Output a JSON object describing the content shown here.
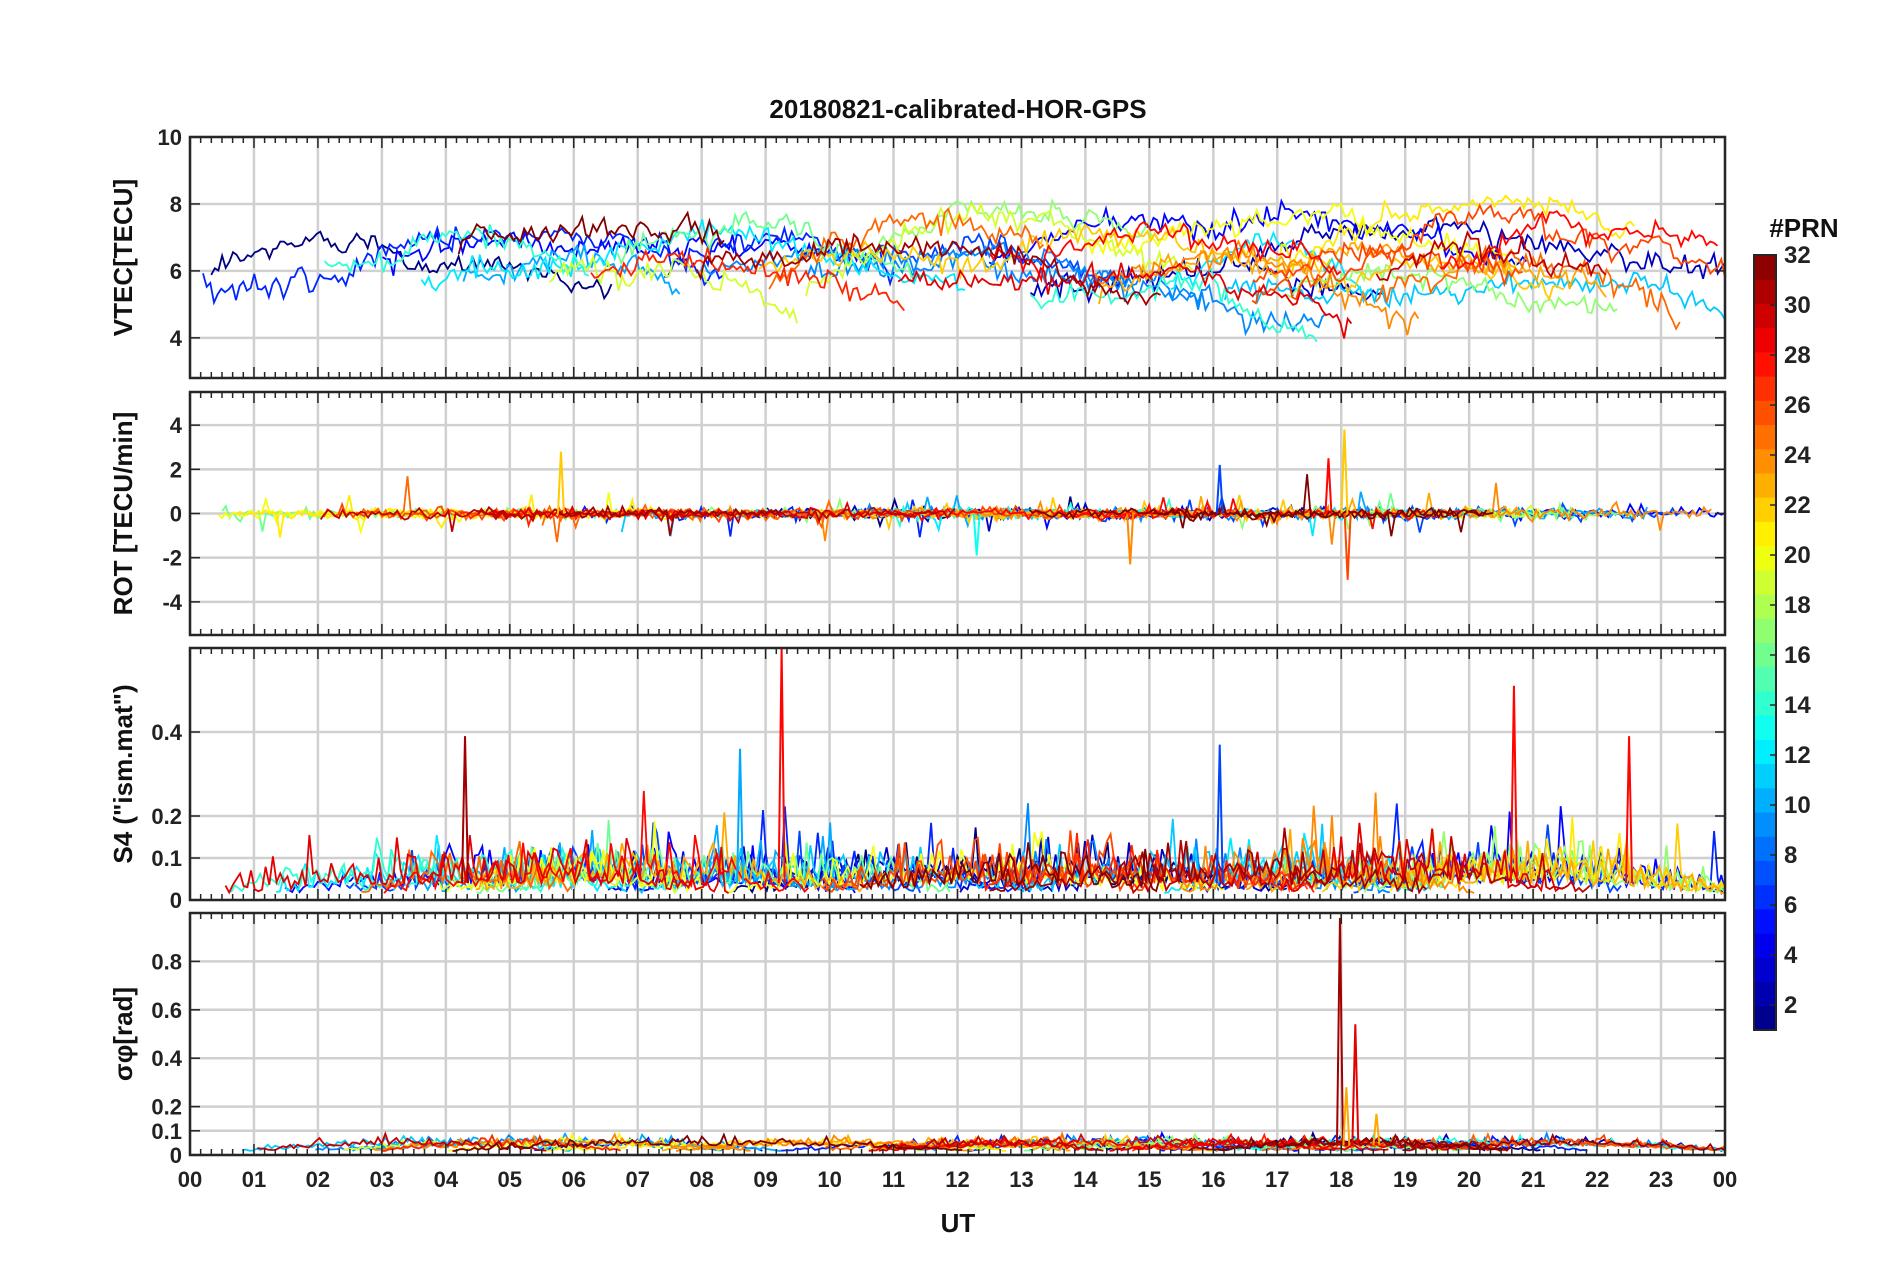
{
  "chart_data": {
    "type": "line",
    "title": "20180821-calibrated-HOR-GPS",
    "xlabel": "UT",
    "x_ticks": [
      "00",
      "01",
      "02",
      "03",
      "04",
      "05",
      "06",
      "07",
      "08",
      "09",
      "10",
      "11",
      "12",
      "13",
      "14",
      "15",
      "16",
      "17",
      "18",
      "19",
      "20",
      "21",
      "22",
      "23",
      "00"
    ],
    "x_range_hours": [
      0,
      24
    ],
    "grid": true,
    "colorbar": {
      "title": "#PRN",
      "range": [
        1,
        32
      ],
      "ticks": [
        "2",
        "4",
        "6",
        "8",
        "10",
        "12",
        "14",
        "16",
        "18",
        "20",
        "22",
        "24",
        "26",
        "28",
        "30",
        "32"
      ],
      "colormap": "jet"
    },
    "panels": [
      {
        "id": "vtec",
        "ylabel": "VTEC[TECU]",
        "ylim": [
          2.8,
          10
        ],
        "yticks": [
          "4",
          "6",
          "8",
          "10"
        ],
        "ytick_values": [
          4,
          6,
          8,
          10
        ],
        "baseline": 5.8,
        "variation": 1.1,
        "noise": 0.15,
        "kind": "smooth"
      },
      {
        "id": "rot",
        "ylabel": "ROT [TECU/min]",
        "ylim": [
          -5.5,
          5.5
        ],
        "yticks": [
          "-4",
          "-2",
          "0",
          "2",
          "4"
        ],
        "ytick_values": [
          -4,
          -2,
          0,
          2,
          4
        ],
        "baseline": 0,
        "variation": 0.25,
        "noise": 0.12,
        "kind": "noise",
        "spikes": [
          {
            "t": 18.05,
            "v": 3.8,
            "prn": 22
          },
          {
            "t": 18.1,
            "v": -3.0,
            "prn": 26
          },
          {
            "t": 17.8,
            "v": 2.5,
            "prn": 28
          },
          {
            "t": 14.7,
            "v": -2.3,
            "prn": 24
          },
          {
            "t": 5.8,
            "v": 2.8,
            "prn": 22
          },
          {
            "t": 12.3,
            "v": -1.9,
            "prn": 13
          },
          {
            "t": 16.1,
            "v": 2.2,
            "prn": 7
          }
        ]
      },
      {
        "id": "s4",
        "ylabel": "S4 (\"ism.mat\")",
        "ylim": [
          0,
          0.6
        ],
        "yticks": [
          "0",
          "0.1",
          "0.2",
          "0.4"
        ],
        "ytick_values": [
          0,
          0.1,
          0.2,
          0.4
        ],
        "baseline": 0.04,
        "variation": 0.06,
        "noise": 0.03,
        "kind": "positive",
        "spikes": [
          {
            "t": 9.25,
            "v": 0.6,
            "prn": 28
          },
          {
            "t": 20.7,
            "v": 0.51,
            "prn": 28
          },
          {
            "t": 4.3,
            "v": 0.39,
            "prn": 31
          },
          {
            "t": 22.5,
            "v": 0.39,
            "prn": 28
          },
          {
            "t": 16.1,
            "v": 0.37,
            "prn": 7
          },
          {
            "t": 8.6,
            "v": 0.36,
            "prn": 10
          }
        ]
      },
      {
        "id": "sigma",
        "ylabel": "σφ[rad]",
        "ylim": [
          0,
          1.0
        ],
        "yticks": [
          "0",
          "0.1",
          "0.2",
          "0.4",
          "0.6",
          "0.8"
        ],
        "ytick_values": [
          0,
          0.1,
          0.2,
          0.4,
          0.6,
          0.8
        ],
        "baseline": 0.04,
        "variation": 0.01,
        "noise": 0.012,
        "kind": "positive",
        "spikes": [
          {
            "t": 17.98,
            "v": 0.98,
            "prn": 31
          },
          {
            "t": 18.22,
            "v": 0.54,
            "prn": 29
          },
          {
            "t": 18.08,
            "v": 0.28,
            "prn": 23
          },
          {
            "t": 18.55,
            "v": 0.17,
            "prn": 23
          }
        ]
      }
    ],
    "series_prns": [
      1,
      3,
      5,
      6,
      7,
      9,
      10,
      11,
      12,
      14,
      16,
      17,
      19,
      20,
      21,
      22,
      23,
      24,
      25,
      26,
      27,
      28,
      29,
      30,
      31,
      32
    ]
  }
}
